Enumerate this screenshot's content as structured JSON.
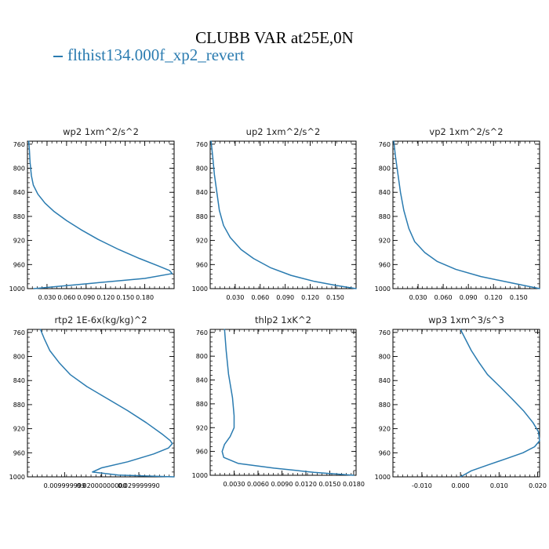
{
  "title": "CLUBB VAR at25E,0N",
  "legend": {
    "label": "flthist134.000f_xp2_revert",
    "color": "#2a7bb0"
  },
  "chart_data": [
    {
      "type": "line",
      "title": "wp2   1xm^2/s^2",
      "xlim": [
        0,
        0.225
      ],
      "ylim": [
        1000,
        755
      ],
      "xticks": [
        0.03,
        0.06,
        0.09,
        0.12,
        0.15,
        0.18
      ],
      "xticklabels": [
        "0.030",
        "0.060",
        "0.090",
        "0.120",
        "0.150",
        "0.180"
      ],
      "yticks": [
        760,
        800,
        840,
        880,
        920,
        960,
        1000
      ],
      "series": [
        {
          "y": [
            755,
            770,
            790,
            812,
            828,
            843,
            858,
            872,
            887,
            902,
            918,
            935,
            950,
            962,
            970,
            975,
            983,
            991,
            1000
          ],
          "values": [
            0.002,
            0.003,
            0.004,
            0.006,
            0.009,
            0.016,
            0.027,
            0.041,
            0.06,
            0.082,
            0.108,
            0.14,
            0.172,
            0.2,
            0.218,
            0.222,
            0.18,
            0.1,
            0.01
          ]
        }
      ]
    },
    {
      "type": "line",
      "title": "up2   1xm^2/s^2",
      "xlim": [
        0,
        0.175
      ],
      "ylim": [
        1000,
        755
      ],
      "xticks": [
        0.03,
        0.06,
        0.09,
        0.12,
        0.15
      ],
      "xticklabels": [
        "0.030",
        "0.060",
        "0.090",
        "0.120",
        "0.150"
      ],
      "yticks": [
        760,
        800,
        840,
        880,
        920,
        960,
        1000
      ],
      "series": [
        {
          "y": [
            755,
            780,
            810,
            840,
            870,
            895,
            915,
            935,
            950,
            965,
            978,
            988,
            995,
            1000
          ],
          "values": [
            0.001,
            0.003,
            0.005,
            0.008,
            0.011,
            0.016,
            0.024,
            0.037,
            0.052,
            0.072,
            0.097,
            0.125,
            0.152,
            0.175
          ]
        }
      ]
    },
    {
      "type": "line",
      "title": "vp2   1xm^2/s^2",
      "xlim": [
        0,
        0.175
      ],
      "ylim": [
        1000,
        755
      ],
      "xticks": [
        0.03,
        0.06,
        0.09,
        0.12,
        0.15
      ],
      "xticklabels": [
        "0.030",
        "0.060",
        "0.090",
        "0.120",
        "0.150"
      ],
      "yticks": [
        760,
        800,
        840,
        880,
        920,
        960,
        1000
      ],
      "series": [
        {
          "y": [
            755,
            780,
            810,
            840,
            870,
            900,
            922,
            940,
            955,
            968,
            980,
            990,
            1000
          ],
          "values": [
            0.001,
            0.003,
            0.006,
            0.009,
            0.013,
            0.019,
            0.026,
            0.038,
            0.053,
            0.075,
            0.105,
            0.14,
            0.175
          ]
        }
      ]
    },
    {
      "type": "line",
      "title": "rtp2   1E-6x(kg/kg)^2",
      "xlim": [
        0,
        0.0395
      ],
      "ylim": [
        1000,
        755
      ],
      "xticks": [
        0.01,
        0.02,
        0.03
      ],
      "xticklabels": [
        "0.009999999",
        "0.02000000000",
        "0.029999990"
      ],
      "yticks": [
        760,
        800,
        840,
        880,
        920,
        960,
        1000
      ],
      "series": [
        {
          "y": [
            755,
            770,
            790,
            810,
            830,
            850,
            870,
            890,
            910,
            930,
            940,
            945,
            952,
            962,
            975,
            985,
            992,
            997,
            1000
          ],
          "values": [
            0.0035,
            0.0045,
            0.006,
            0.0085,
            0.0115,
            0.016,
            0.0215,
            0.027,
            0.032,
            0.0365,
            0.0385,
            0.039,
            0.038,
            0.034,
            0.027,
            0.02,
            0.0175,
            0.0245,
            0.0395
          ]
        }
      ]
    },
    {
      "type": "line",
      "title": "thlp2   1xK^2",
      "xlim": [
        0,
        0.0183
      ],
      "ylim": [
        1000,
        755
      ],
      "xticks": [
        0.003,
        0.006,
        0.009,
        0.012,
        0.015,
        0.018
      ],
      "xticklabels": [
        "0.0030",
        "0.0060",
        "0.0090",
        "0.0120",
        "0.0150",
        "0.0180"
      ],
      "yticks": [
        760,
        800,
        840,
        880,
        920,
        960,
        1000
      ],
      "series": [
        {
          "y": [
            755,
            790,
            830,
            870,
            900,
            920,
            935,
            948,
            960,
            970,
            980,
            988,
            995,
            1000
          ],
          "values": [
            0.0018,
            0.002,
            0.0023,
            0.0028,
            0.003,
            0.003,
            0.0025,
            0.0018,
            0.0015,
            0.0017,
            0.0035,
            0.008,
            0.013,
            0.018
          ]
        }
      ]
    },
    {
      "type": "line",
      "title": "wp3   1xm^3/s^3",
      "xlim": [
        -0.0175,
        0.0205
      ],
      "ylim": [
        1000,
        755
      ],
      "xticks": [
        -0.01,
        0.0,
        0.01,
        0.02
      ],
      "xticklabels": [
        "-0.010",
        "0.000",
        "0.010",
        "0.020"
      ],
      "yticks": [
        760,
        800,
        840,
        880,
        920,
        960,
        1000
      ],
      "series": [
        {
          "y": [
            755,
            770,
            790,
            810,
            830,
            850,
            870,
            890,
            910,
            925,
            940,
            950,
            960,
            970,
            980,
            990,
            1000
          ],
          "values": [
            0.0,
            0.0012,
            0.0028,
            0.0048,
            0.007,
            0.0102,
            0.0133,
            0.0163,
            0.0188,
            0.0202,
            0.0205,
            0.0192,
            0.0162,
            0.0118,
            0.0072,
            0.0028,
            0.0
          ]
        }
      ]
    }
  ]
}
